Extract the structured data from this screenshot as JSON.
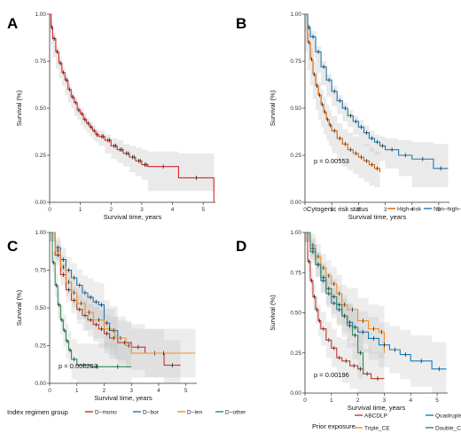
{
  "chart_data": [
    {
      "panel": "A",
      "type": "line",
      "subtype": "kaplan-meier",
      "xlabel": "Survival time, years",
      "ylabel": "Survival (%)",
      "xlim": [
        0,
        5.4
      ],
      "ylim": [
        0,
        1
      ],
      "xticks": [
        0,
        1,
        2,
        3,
        4,
        5
      ],
      "yticks": [
        "0.00",
        "0.25",
        "0.50",
        "0.75",
        "1.00"
      ],
      "grid": false,
      "confidence_band": true,
      "series": [
        {
          "color": "#d62728",
          "x": [
            0,
            0.05,
            0.1,
            0.2,
            0.3,
            0.4,
            0.5,
            0.6,
            0.7,
            0.8,
            0.9,
            1.0,
            1.1,
            1.2,
            1.3,
            1.4,
            1.5,
            1.6,
            1.8,
            2.0,
            2.2,
            2.4,
            2.6,
            2.8,
            3.0,
            3.2,
            4.2,
            5.35
          ],
          "y": [
            1,
            0.93,
            0.87,
            0.8,
            0.74,
            0.69,
            0.65,
            0.6,
            0.56,
            0.53,
            0.49,
            0.47,
            0.44,
            0.42,
            0.4,
            0.38,
            0.36,
            0.35,
            0.33,
            0.3,
            0.28,
            0.26,
            0.24,
            0.22,
            0.2,
            0.19,
            0.13,
            0.0
          ],
          "lower": [
            1,
            0.9,
            0.84,
            0.77,
            0.71,
            0.66,
            0.62,
            0.57,
            0.53,
            0.5,
            0.46,
            0.44,
            0.41,
            0.39,
            0.37,
            0.35,
            0.33,
            0.32,
            0.3,
            0.26,
            0.23,
            0.21,
            0.19,
            0.16,
            0.14,
            0.12,
            0.06,
            0.06
          ],
          "upper": [
            1,
            0.96,
            0.9,
            0.83,
            0.77,
            0.72,
            0.68,
            0.63,
            0.59,
            0.56,
            0.52,
            0.5,
            0.47,
            0.45,
            0.43,
            0.41,
            0.39,
            0.38,
            0.36,
            0.34,
            0.33,
            0.31,
            0.3,
            0.29,
            0.28,
            0.27,
            0.26,
            0.26
          ]
        }
      ],
      "censor_x": [
        0.15,
        0.35,
        0.55,
        0.75,
        0.95,
        1.15,
        1.35,
        1.55,
        1.75,
        1.95,
        2.15,
        2.35,
        2.55,
        2.75,
        2.95,
        3.15
      ]
    },
    {
      "panel": "B",
      "type": "line",
      "subtype": "kaplan-meier",
      "xlabel": "Survival time, years",
      "ylabel": "Survival (%)",
      "xlim": [
        0,
        5.4
      ],
      "ylim": [
        0,
        1
      ],
      "xticks": [
        0,
        1,
        2,
        3,
        4,
        5
      ],
      "yticks": [
        "0.00",
        "0.25",
        "0.50",
        "0.75",
        "1.00"
      ],
      "grid": false,
      "confidence_band": true,
      "pvalue": "p = 0.00553",
      "legend_title": "Cytogenic risk status",
      "legend_position": "bottom",
      "series": [
        {
          "name": "High–risk",
          "color": "#d95f02",
          "x": [
            0,
            0.1,
            0.2,
            0.3,
            0.4,
            0.5,
            0.6,
            0.7,
            0.8,
            0.9,
            1.0,
            1.2,
            1.4,
            1.6,
            1.8,
            2.0,
            2.2,
            2.4,
            2.6,
            2.8
          ],
          "y": [
            1,
            0.85,
            0.76,
            0.68,
            0.62,
            0.57,
            0.52,
            0.48,
            0.44,
            0.41,
            0.38,
            0.34,
            0.31,
            0.28,
            0.26,
            0.24,
            0.22,
            0.2,
            0.18,
            0.16
          ],
          "lower": [
            1,
            0.8,
            0.7,
            0.62,
            0.55,
            0.49,
            0.44,
            0.4,
            0.36,
            0.33,
            0.3,
            0.26,
            0.22,
            0.19,
            0.17,
            0.15,
            0.13,
            0.11,
            0.09,
            0.08
          ],
          "upper": [
            1,
            0.9,
            0.82,
            0.75,
            0.69,
            0.64,
            0.6,
            0.56,
            0.52,
            0.49,
            0.46,
            0.42,
            0.39,
            0.37,
            0.35,
            0.33,
            0.31,
            0.29,
            0.27,
            0.26
          ]
        },
        {
          "name": "Non–high–risk",
          "color": "#1f78b4",
          "x": [
            0,
            0.1,
            0.2,
            0.4,
            0.6,
            0.8,
            1.0,
            1.2,
            1.4,
            1.6,
            1.8,
            2.0,
            2.2,
            2.4,
            2.6,
            2.8,
            3.0,
            3.5,
            4.0,
            4.8,
            5.35
          ],
          "y": [
            1,
            0.93,
            0.88,
            0.8,
            0.72,
            0.65,
            0.59,
            0.54,
            0.5,
            0.46,
            0.43,
            0.4,
            0.37,
            0.34,
            0.32,
            0.3,
            0.28,
            0.25,
            0.23,
            0.18,
            0.18
          ],
          "lower": [
            1,
            0.91,
            0.85,
            0.77,
            0.69,
            0.62,
            0.56,
            0.51,
            0.47,
            0.43,
            0.4,
            0.36,
            0.33,
            0.3,
            0.27,
            0.25,
            0.22,
            0.18,
            0.14,
            0.08,
            0.08
          ],
          "upper": [
            1,
            0.95,
            0.91,
            0.83,
            0.75,
            0.68,
            0.62,
            0.57,
            0.53,
            0.49,
            0.46,
            0.44,
            0.41,
            0.38,
            0.36,
            0.35,
            0.34,
            0.33,
            0.32,
            0.31,
            0.31
          ]
        }
      ]
    },
    {
      "panel": "C",
      "type": "line",
      "subtype": "kaplan-meier",
      "xlabel": "Survival time, years",
      "ylabel": "Survival (%)",
      "xlim": [
        0,
        5.4
      ],
      "ylim": [
        0,
        1
      ],
      "xticks": [
        0,
        1,
        2,
        3,
        4,
        5
      ],
      "yticks": [
        "0.00",
        "0.25",
        "0.50",
        "0.75",
        "1.00"
      ],
      "grid": false,
      "confidence_band": true,
      "pvalue": "p = 0.000253",
      "legend_title": "Index regimen group",
      "legend_position": "bottom",
      "series": [
        {
          "name": "D−mono",
          "color": "#c0392b",
          "x": [
            0,
            0.2,
            0.4,
            0.6,
            0.8,
            1.0,
            1.2,
            1.4,
            1.6,
            1.8,
            2.0,
            2.2,
            2.5,
            3.0,
            3.5,
            4.2,
            4.8
          ],
          "y": [
            1,
            0.85,
            0.72,
            0.62,
            0.55,
            0.49,
            0.45,
            0.42,
            0.39,
            0.36,
            0.33,
            0.3,
            0.27,
            0.24,
            0.2,
            0.12,
            0.12
          ]
        },
        {
          "name": "D−bor",
          "color": "#1f78b4",
          "x": [
            0,
            0.2,
            0.4,
            0.6,
            0.8,
            1.0,
            1.2,
            1.4,
            1.6,
            1.8,
            2.0,
            2.2,
            2.5
          ],
          "y": [
            1,
            0.9,
            0.82,
            0.75,
            0.7,
            0.65,
            0.6,
            0.57,
            0.54,
            0.52,
            0.4,
            0.35,
            0.3
          ]
        },
        {
          "name": "D−len",
          "color": "#f28e2b",
          "x": [
            0,
            0.2,
            0.4,
            0.6,
            0.8,
            1.0,
            1.3,
            1.6,
            2.0,
            2.4,
            2.8,
            3.0,
            5.35
          ],
          "y": [
            1,
            0.88,
            0.77,
            0.67,
            0.6,
            0.53,
            0.47,
            0.42,
            0.36,
            0.3,
            0.25,
            0.2,
            0.2
          ]
        },
        {
          "name": "D−other",
          "color": "#2e8b57",
          "x": [
            0,
            0.1,
            0.2,
            0.3,
            0.4,
            0.5,
            0.6,
            0.7,
            0.8,
            1.0,
            1.5,
            2.0,
            3.0
          ],
          "y": [
            1,
            0.8,
            0.65,
            0.52,
            0.42,
            0.35,
            0.28,
            0.22,
            0.16,
            0.12,
            0.11,
            0.11,
            0.11
          ]
        }
      ]
    },
    {
      "panel": "D",
      "type": "line",
      "subtype": "kaplan-meier",
      "xlabel": "Survival time, years",
      "ylabel": "Survival (%)",
      "xlim": [
        0,
        5.4
      ],
      "ylim": [
        0,
        1
      ],
      "xticks": [
        0,
        1,
        2,
        3,
        4,
        5
      ],
      "yticks": [
        "0.00",
        "0.25",
        "0.50",
        "0.75",
        "1.00"
      ],
      "grid": false,
      "confidence_band": true,
      "pvalue": "p = 0.00196",
      "legend_title": "Prior exposure",
      "legend_position": "bottom",
      "series": [
        {
          "name": "ABCDLP",
          "color": "#c0392b",
          "x": [
            0,
            0.1,
            0.2,
            0.3,
            0.4,
            0.5,
            0.6,
            0.8,
            1.0,
            1.2,
            1.4,
            1.7,
            2.0,
            2.2,
            2.5,
            3.0
          ],
          "y": [
            1,
            0.82,
            0.7,
            0.6,
            0.52,
            0.45,
            0.4,
            0.33,
            0.28,
            0.22,
            0.2,
            0.17,
            0.15,
            0.12,
            0.09,
            0.09
          ]
        },
        {
          "name": "Triple_CE",
          "color": "#f28e2b",
          "x": [
            0,
            0.2,
            0.4,
            0.6,
            0.8,
            1.0,
            1.2,
            1.4,
            1.6,
            2.0,
            2.4,
            2.8,
            3.0
          ],
          "y": [
            1,
            0.92,
            0.85,
            0.78,
            0.73,
            0.68,
            0.62,
            0.55,
            0.52,
            0.45,
            0.4,
            0.38,
            0.25
          ]
        },
        {
          "name": "Quadruple_CE",
          "color": "#1f78b4",
          "x": [
            0,
            0.2,
            0.4,
            0.6,
            0.8,
            1.0,
            1.2,
            1.4,
            1.6,
            1.8,
            2.0,
            2.4,
            2.8,
            3.2,
            3.6,
            4.0,
            4.8,
            5.35
          ],
          "y": [
            1,
            0.9,
            0.8,
            0.7,
            0.62,
            0.56,
            0.52,
            0.48,
            0.44,
            0.41,
            0.38,
            0.34,
            0.3,
            0.27,
            0.24,
            0.2,
            0.15,
            0.15
          ]
        },
        {
          "name": "Double_CE",
          "color": "#2e8b57",
          "x": [
            0,
            0.2,
            0.4,
            0.6,
            0.8,
            1.0,
            1.2,
            1.4,
            1.6,
            1.8,
            2.0,
            2.2
          ],
          "y": [
            1,
            0.88,
            0.8,
            0.72,
            0.65,
            0.6,
            0.55,
            0.48,
            0.42,
            0.36,
            0.25,
            0.12
          ]
        }
      ]
    }
  ]
}
